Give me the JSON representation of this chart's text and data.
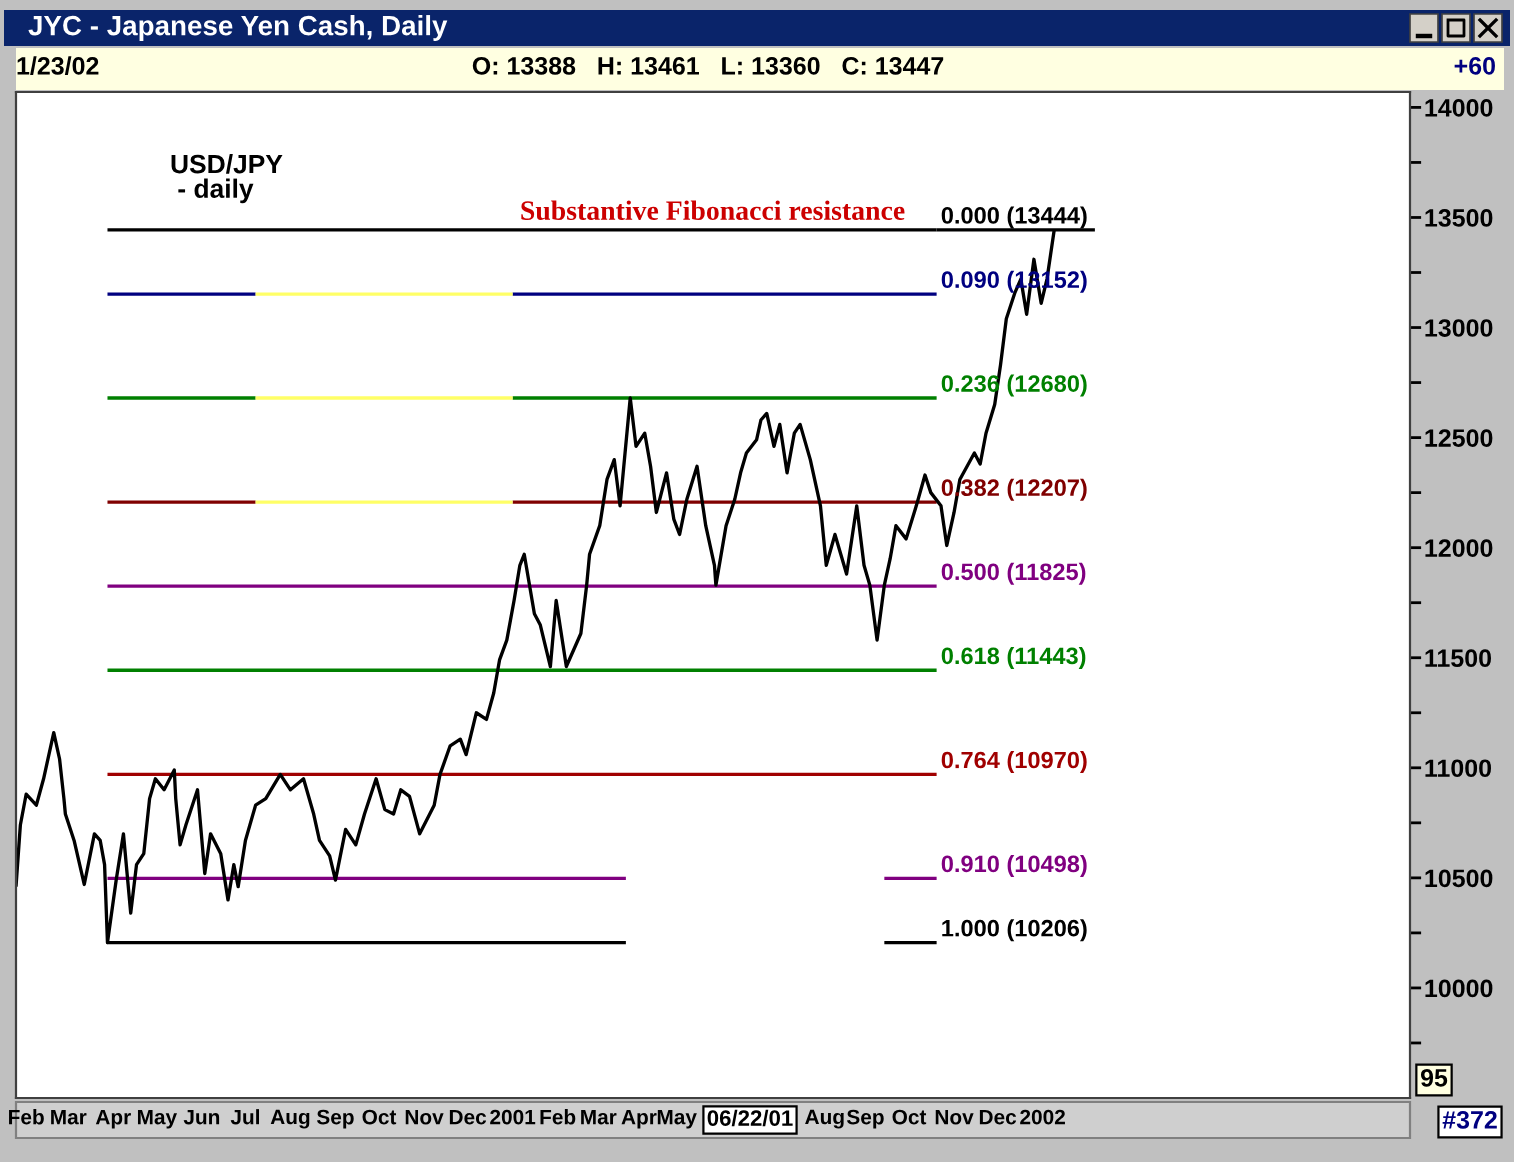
{
  "chart_data": {
    "type": "line",
    "title": "JYC - Japanese Yen Cash, Daily",
    "subtitle": "O: 13388   H: 13461   L: 13360   C: 13447",
    "annotations": [
      "1/23/02",
      "+60",
      "USD/JPY\n - daily",
      {
        "text": "Substantive Fibonacci resistance",
        "x": "2001-01-20",
        "y": 13444
      },
      "95",
      "06/22/01",
      "#372"
    ],
    "xlim": [
      "2000-02-08",
      "2002-09-25"
    ],
    "xticks": [
      {
        "value": "2000-02-15",
        "label": "Feb"
      },
      {
        "value": "2000-03-15",
        "label": "Mar"
      },
      {
        "value": "2000-04-15",
        "label": "Apr"
      },
      {
        "value": "2000-05-15",
        "label": "May"
      },
      {
        "value": "2000-06-15",
        "label": "Jun"
      },
      {
        "value": "2000-07-15",
        "label": "Jul"
      },
      {
        "value": "2000-08-15",
        "label": "Aug"
      },
      {
        "value": "2000-09-15",
        "label": "Sep"
      },
      {
        "value": "2000-10-15",
        "label": "Oct"
      },
      {
        "value": "2000-11-15",
        "label": "Nov"
      },
      {
        "value": "2000-12-15",
        "label": "Dec"
      },
      {
        "value": "2001-01-15",
        "label": "2001"
      },
      {
        "value": "2001-02-15",
        "label": "Feb"
      },
      {
        "value": "2001-03-15",
        "label": "Mar"
      },
      {
        "value": "2001-04-12",
        "label": "Apr"
      },
      {
        "value": "2001-05-08",
        "label": "May"
      },
      {
        "value": "2001-08-18",
        "label": "Aug"
      },
      {
        "value": "2001-09-15",
        "label": "Sep"
      },
      {
        "value": "2001-10-15",
        "label": "Oct"
      },
      {
        "value": "2001-11-15",
        "label": "Nov"
      },
      {
        "value": "2001-12-15",
        "label": "Dec"
      },
      {
        "value": "2002-01-15",
        "label": "2002"
      }
    ],
    "ylim": [
      9500,
      14070
    ],
    "yticks": [
      {
        "value": 9750,
        "label": null
      },
      10000,
      {
        "value": 10250,
        "label": null
      },
      10500,
      {
        "value": 10750,
        "label": null
      },
      11000,
      {
        "value": 11250,
        "label": null
      },
      11500,
      {
        "value": 11750,
        "label": null
      },
      12000,
      {
        "value": 12250,
        "label": null
      },
      12500,
      {
        "value": 12750,
        "label": null
      },
      13000,
      {
        "value": 13250,
        "label": null
      },
      13500,
      {
        "value": 13750,
        "label": null
      },
      14000
    ],
    "series": [
      {
        "name": "0.000 (13444)",
        "color": "#000000",
        "x": [
          "2000-04-11",
          "2001-11-03"
        ],
        "values": [
          13444,
          13444
        ]
      },
      {
        "color": "#000000",
        "x": [
          "2001-11-03",
          "2002-02-20"
        ],
        "values": [
          13444,
          13444
        ]
      },
      {
        "name": "0.090 (13152)",
        "color": "#000080",
        "x": [
          "2000-04-11",
          "2000-07-22",
          "2000-10-01",
          "2001-01-15",
          "2001-11-03"
        ],
        "values": [
          13152,
          13152,
          null,
          13152,
          13152
        ]
      },
      {
        "color": "#ffff66",
        "x": [
          "2000-07-22",
          "2001-01-15"
        ],
        "values": [
          13152,
          13152
        ]
      },
      {
        "name": "0.236 (12680)",
        "color": "#008000",
        "x": [
          "2000-04-11",
          "2000-07-22",
          "2000-10-01",
          "2001-01-15",
          "2001-11-03"
        ],
        "values": [
          12680,
          12680,
          null,
          12680,
          12680
        ]
      },
      {
        "color": "#ffff66",
        "x": [
          "2000-07-22",
          "2001-01-15"
        ],
        "values": [
          12680,
          12680
        ]
      },
      {
        "name": "0.382 (12207)",
        "color": "#800000",
        "x": [
          "2000-04-11",
          "2000-07-22",
          "2000-10-01",
          "2001-01-15",
          "2001-11-03"
        ],
        "values": [
          12207,
          12207,
          null,
          12207,
          12207
        ]
      },
      {
        "color": "#ffff66",
        "x": [
          "2000-07-22",
          "2001-01-15"
        ],
        "values": [
          12207,
          12207
        ]
      },
      {
        "name": "0.500 (11825)",
        "color": "#800080",
        "x": [
          "2000-04-11",
          "2001-11-03"
        ],
        "values": [
          11825,
          11825
        ]
      },
      {
        "name": "0.618 (11443)",
        "color": "#008000",
        "x": [
          "2000-04-11",
          "2001-11-03"
        ],
        "values": [
          11443,
          11443
        ]
      },
      {
        "name": "0.764 (10970)",
        "color": "#a00000",
        "x": [
          "2000-04-11",
          "2001-11-03"
        ],
        "values": [
          10970,
          10970
        ]
      },
      {
        "name": "0.910 (10498)",
        "color": "#800080",
        "x": [
          "2000-04-11",
          "2001-04-03",
          "2001-06-30",
          "2001-09-28",
          "2001-11-03"
        ],
        "values": [
          10498,
          10498,
          null,
          10498,
          10498
        ]
      },
      {
        "name": "1.000 (10206)",
        "color": "#000000",
        "x": [
          "2000-04-11",
          "2001-04-03",
          "2001-06-30",
          "2001-09-28",
          "2001-11-03"
        ],
        "values": [
          10206,
          10206,
          null,
          10206,
          10206
        ]
      },
      {
        "type": "line",
        "color": "#000000",
        "x": [
          "2000-02-08",
          "2000-02-11",
          "2000-02-15",
          "2000-02-22",
          "2000-02-27",
          "2000-03-05",
          "2000-03-09",
          "2000-03-12",
          "2000-03-13",
          "2000-03-19",
          "2000-03-26",
          "2000-04-02",
          "2000-04-06",
          "2000-04-09",
          "2000-04-11",
          "2000-04-17",
          "2000-04-22",
          "2000-04-27",
          "2000-05-01",
          "2000-05-06",
          "2000-05-10",
          "2000-05-14",
          "2000-05-20",
          "2000-05-27",
          "2000-05-28",
          "2000-05-31",
          "2000-06-04",
          "2000-06-12",
          "2000-06-17",
          "2000-06-21",
          "2000-06-28",
          "2000-07-03",
          "2000-07-07",
          "2000-07-10",
          "2000-07-15",
          "2000-07-22",
          "2000-07-29",
          "2000-08-08",
          "2000-08-15",
          "2000-08-24",
          "2000-08-31",
          "2000-09-04",
          "2000-09-11",
          "2000-09-15",
          "2000-09-22",
          "2000-09-29",
          "2000-10-05",
          "2000-10-13",
          "2000-10-19",
          "2000-10-25",
          "2000-10-30",
          "2000-11-05",
          "2000-11-12",
          "2000-11-22",
          "2000-11-26",
          "2000-12-03",
          "2000-12-10",
          "2000-12-14",
          "2000-12-21",
          "2000-12-28",
          "2001-01-02",
          "2001-01-06",
          "2001-01-11",
          "2001-01-16",
          "2001-01-20",
          "2001-01-23",
          "2001-01-30",
          "2001-02-03",
          "2001-02-10",
          "2001-02-14",
          "2001-02-21",
          "2001-03-03",
          "2001-03-07",
          "2001-03-09",
          "2001-03-16",
          "2001-03-21",
          "2001-03-26",
          "2001-03-30",
          "2001-04-06",
          "2001-04-10",
          "2001-04-16",
          "2001-04-20",
          "2001-04-24",
          "2001-05-01",
          "2001-05-06",
          "2001-05-10",
          "2001-05-15",
          "2001-05-22",
          "2001-05-28",
          "2001-06-03",
          "2001-06-04",
          "2001-06-11",
          "2001-06-17",
          "2001-06-21",
          "2001-06-25",
          "2001-07-02",
          "2001-07-05",
          "2001-07-09",
          "2001-07-14",
          "2001-07-18",
          "2001-07-23",
          "2001-07-28",
          "2001-08-01",
          "2001-08-08",
          "2001-08-15",
          "2001-08-19",
          "2001-08-25",
          "2001-08-29",
          "2001-09-02",
          "2001-09-09",
          "2001-09-14",
          "2001-09-18",
          "2001-09-23",
          "2001-09-28",
          "2001-10-02",
          "2001-10-06",
          "2001-10-13",
          "2001-10-20",
          "2001-10-26",
          "2001-10-30",
          "2001-11-06",
          "2001-11-10",
          "2001-11-15",
          "2001-11-19",
          "2001-11-24",
          "2001-11-29",
          "2001-12-03",
          "2001-12-07",
          "2001-12-13",
          "2001-12-17",
          "2001-12-21",
          "2001-12-27",
          "2001-12-31",
          "2002-01-04",
          "2002-01-09",
          "2002-01-14",
          "2002-01-18",
          "2002-01-23"
        ],
        "values": [
          10460,
          10740,
          10880,
          10830,
          10950,
          11160,
          11040,
          10860,
          10790,
          10670,
          10470,
          10700,
          10670,
          10560,
          10206,
          10490,
          10700,
          10340,
          10560,
          10610,
          10860,
          10950,
          10900,
          10990,
          10860,
          10650,
          10740,
          10900,
          10520,
          10700,
          10610,
          10400,
          10560,
          10460,
          10670,
          10830,
          10860,
          10970,
          10900,
          10950,
          10790,
          10670,
          10600,
          10490,
          10720,
          10650,
          10790,
          10950,
          10810,
          10790,
          10900,
          10870,
          10700,
          10830,
          10970,
          11100,
          11130,
          11060,
          11250,
          11220,
          11340,
          11490,
          11580,
          11760,
          11920,
          11970,
          11700,
          11650,
          11460,
          11760,
          11460,
          11610,
          11830,
          11970,
          12100,
          12310,
          12400,
          12190,
          12680,
          12460,
          12520,
          12370,
          12160,
          12340,
          12130,
          12060,
          12220,
          12370,
          12100,
          11920,
          11830,
          12100,
          12220,
          12340,
          12430,
          12490,
          12580,
          12610,
          12460,
          12560,
          12340,
          12520,
          12560,
          12400,
          12190,
          11920,
          12060,
          11970,
          11880,
          12190,
          11920,
          11830,
          11580,
          11830,
          11950,
          12100,
          12040,
          12190,
          12330,
          12250,
          12190,
          12010,
          12160,
          12310,
          12370,
          12430,
          12380,
          12520,
          12650,
          12830,
          13040,
          13160,
          13220,
          13060,
          13310,
          13110,
          13220,
          13444
        ]
      }
    ]
  }
}
